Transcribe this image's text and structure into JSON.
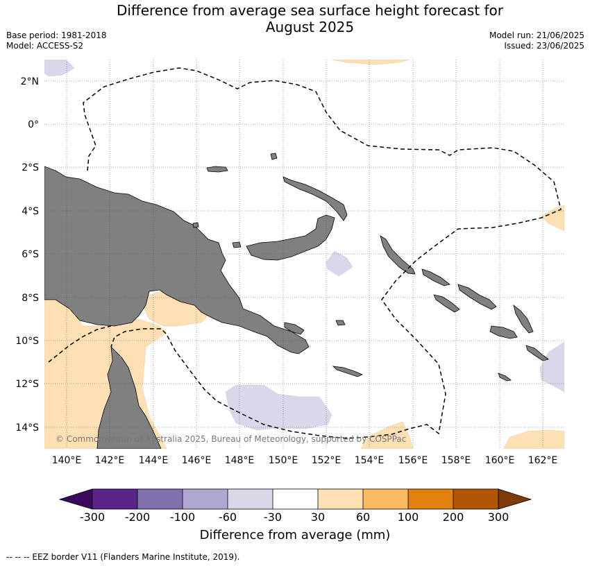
{
  "title_line1": "Difference from average sea surface height forecast for",
  "title_line2": "August 2025",
  "base_period": "Base period: 1981-2018",
  "model": "Model: ACCESS-S2",
  "model_run": "Model run: 21/06/2025",
  "issued": "Issued: 23/06/2025",
  "copyright": "© Commonwealth of Australia 2025, Bureau of Meteorology, supported by COSPPac",
  "legend_title": "Difference from average (mm)",
  "footer": "--  --  -- EEZ border V11 (Flanders Marine Institute, 2019).",
  "colors": {
    "land": "#808080",
    "ocean": "#ffffff",
    "eez": "#000000"
  },
  "map": {
    "lon_range": [
      139,
      163
    ],
    "lat_range": [
      -15,
      3
    ],
    "lon_ticks": [
      "140°E",
      "142°E",
      "144°E",
      "146°E",
      "148°E",
      "150°E",
      "152°E",
      "154°E",
      "156°E",
      "158°E",
      "160°E",
      "162°E"
    ],
    "lat_ticks": [
      "2°N",
      "0°",
      "2°S",
      "4°S",
      "6°S",
      "8°S",
      "10°S",
      "12°S",
      "14°S"
    ],
    "grid": true
  },
  "colorbar": {
    "labels": [
      "-300",
      "-200",
      "-100",
      "-60",
      "-30",
      "30",
      "60",
      "100",
      "200",
      "300"
    ],
    "colors": [
      "#5a2489",
      "#8071ae",
      "#b0a8d1",
      "#d8d8ea",
      "#ffffff",
      "#fee0b5",
      "#fbb961",
      "#e1820f",
      "#b15505"
    ],
    "under_color": "#3a0a5c",
    "over_color": "#7d3b08"
  }
}
